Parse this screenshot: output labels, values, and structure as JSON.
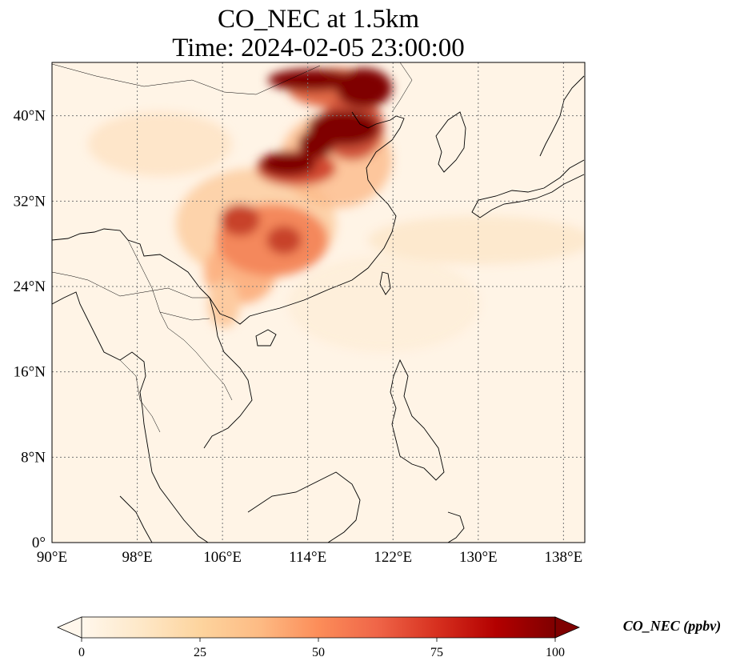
{
  "title": {
    "line1": "CO_NEC at 1.5km",
    "line2": "Time: 2024-02-05 23:00:00"
  },
  "map": {
    "extent": {
      "lon": [
        90,
        140
      ],
      "lat": [
        0,
        45
      ]
    },
    "lon_ticks": [
      90,
      98,
      106,
      114,
      122,
      130,
      138
    ],
    "lon_tick_labels": [
      "90°E",
      "98°E",
      "106°E",
      "114°E",
      "122°E",
      "130°E",
      "138°E"
    ],
    "lat_ticks": [
      0,
      8,
      16,
      24,
      32,
      40
    ],
    "lat_tick_labels": [
      "0°",
      "8°N",
      "16°N",
      "24°N",
      "32°N",
      "40°N"
    ],
    "gridlines": true,
    "colormap": [
      "#fff7ec",
      "#fee8c8",
      "#fdd49e",
      "#fdbb84",
      "#fc8d59",
      "#ef6548",
      "#d7301f",
      "#b30000",
      "#7f0000"
    ]
  },
  "colorbar": {
    "range": [
      0,
      100
    ],
    "ticks": [
      0,
      25,
      50,
      75,
      100
    ],
    "tick_labels": [
      "0",
      "25",
      "50",
      "75",
      "100"
    ],
    "extend": "both",
    "label": "CO_NEC (ppbv)"
  }
}
